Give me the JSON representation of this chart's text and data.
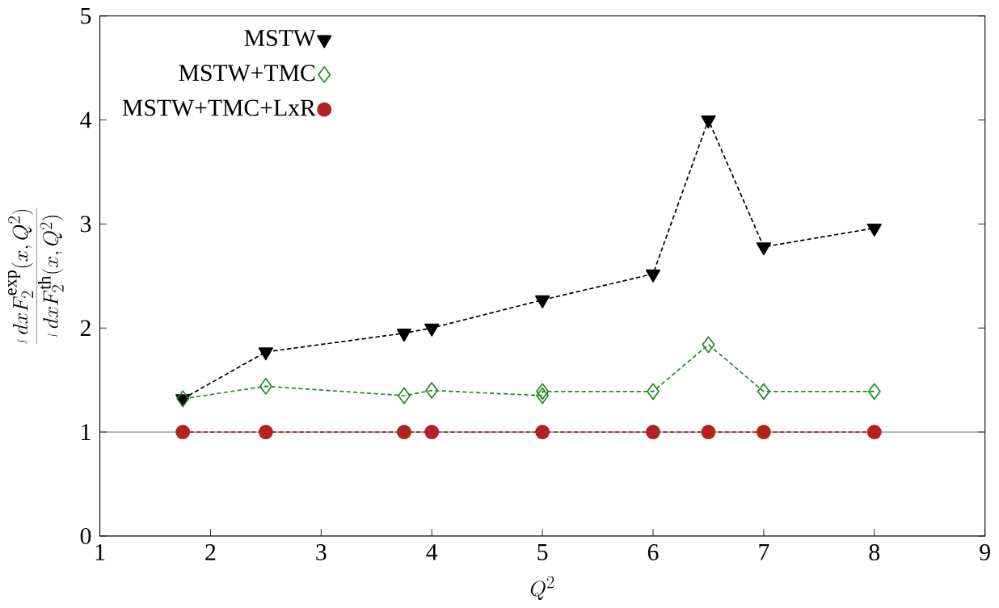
{
  "chart_data": {
    "type": "line",
    "xlabel": "Q^2",
    "ylabel": "\\frac{\\int dx F_2^{\\mathrm{exp}}(x,Q^2)}{\\int dx F_2^{\\mathrm{th}}(x,Q^2)}",
    "xlim": [
      1,
      9
    ],
    "ylim": [
      0,
      5
    ],
    "xticks": [
      1,
      2,
      3,
      4,
      5,
      6,
      7,
      8,
      9
    ],
    "yticks": [
      0,
      1,
      2,
      3,
      4,
      5
    ],
    "grid": false,
    "legend": "top left",
    "line_style": "dashed",
    "ref_lines": [
      {
        "axis": "y",
        "value": 1,
        "color": "#555555"
      }
    ],
    "series": [
      {
        "name": "MSTW",
        "color": "#000000",
        "marker": "triangle",
        "x": [
          1.75,
          2.5,
          3.75,
          4,
          5,
          6,
          6.5,
          7,
          8
        ],
        "values": [
          1.32,
          1.77,
          1.95,
          2.0,
          2.27,
          2.52,
          4.0,
          2.78,
          2.96
        ]
      },
      {
        "name": "MSTW+TMC",
        "color": "#228b22",
        "marker": "diamond",
        "x": [
          1.75,
          2.5,
          3.75,
          4,
          5,
          5,
          6,
          6.5,
          7,
          8
        ],
        "values": [
          1.32,
          1.44,
          1.35,
          1.4,
          1.35,
          1.39,
          1.39,
          1.84,
          1.39,
          1.39
        ]
      },
      {
        "name": "MSTW+TMC+LxR",
        "color": "#b22222",
        "marker": "circle",
        "x": [
          1.75,
          2.5,
          3.75,
          4,
          5,
          6,
          6.5,
          7,
          8
        ],
        "values": [
          1.0,
          1.0,
          1.0,
          1.0,
          1.0,
          1.0,
          1.0,
          1.0,
          1.0
        ]
      }
    ]
  }
}
